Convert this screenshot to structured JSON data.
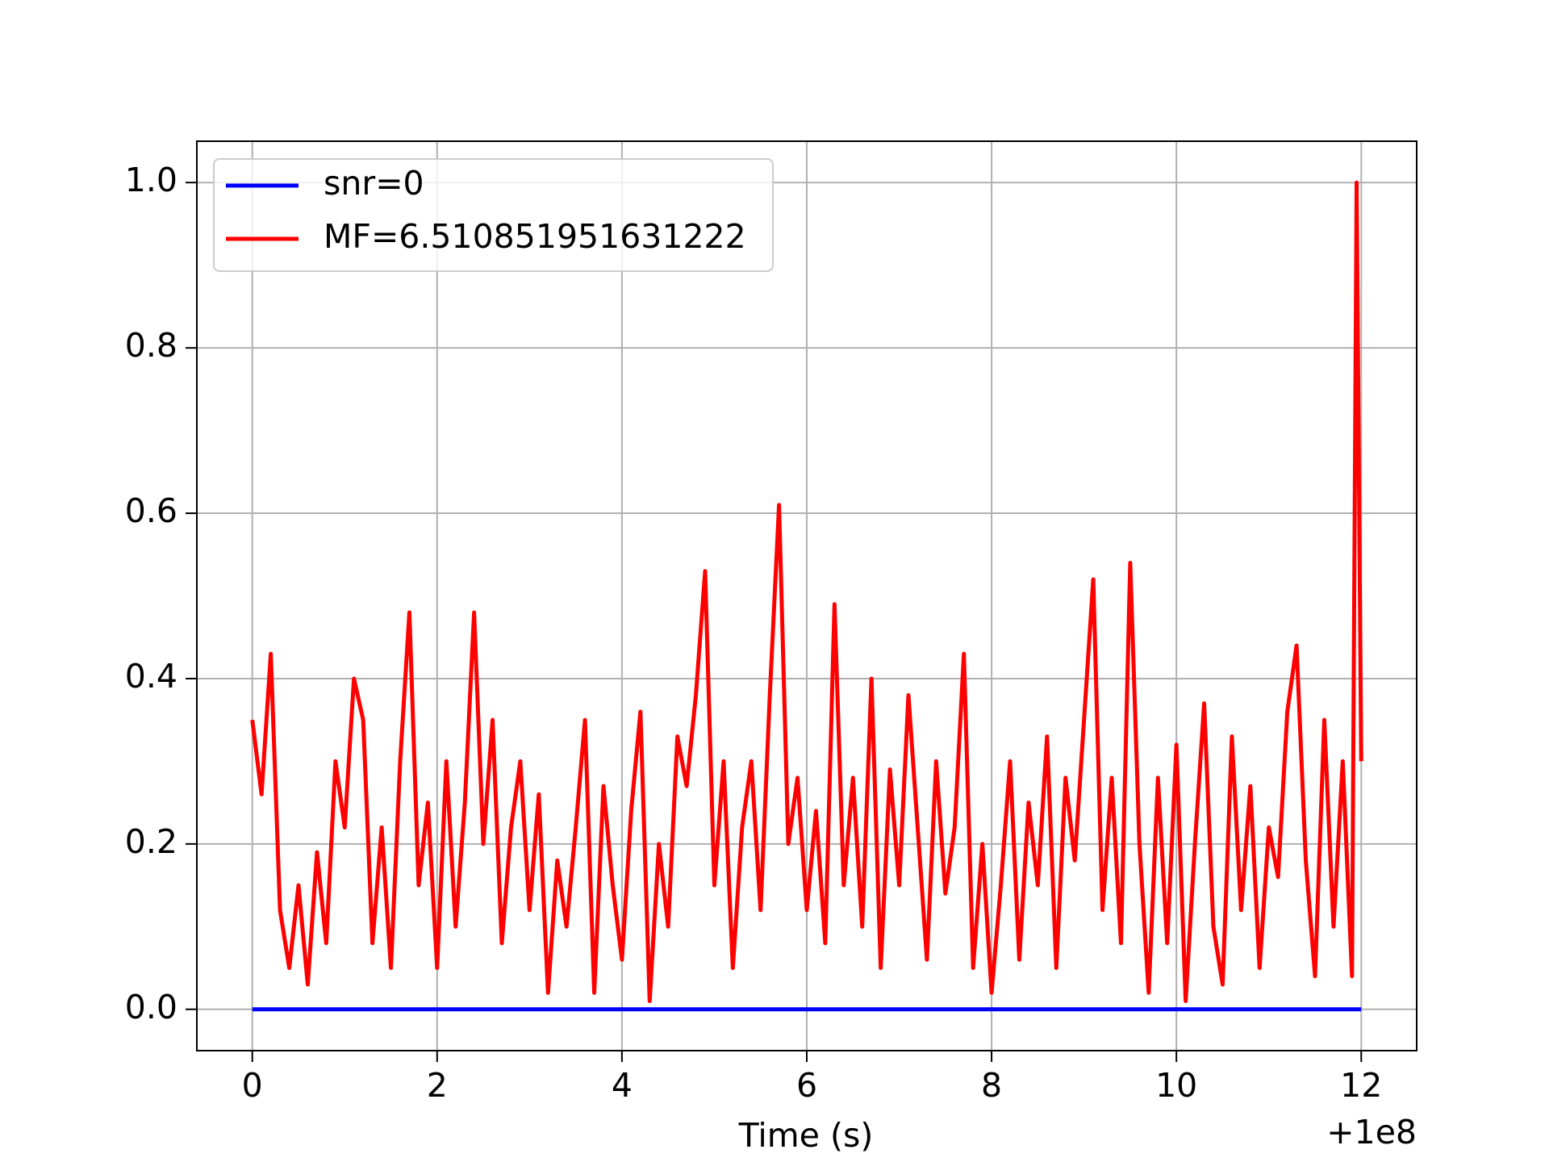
{
  "chart_data": {
    "type": "line",
    "x_label": "Time (s)",
    "x_offset_label": "+1e8",
    "x": [
      0,
      0.1,
      0.2,
      0.3,
      0.4,
      0.5,
      0.6,
      0.7,
      0.8,
      0.9,
      1,
      1.1,
      1.2,
      1.3,
      1.4,
      1.5,
      1.6,
      1.7,
      1.8,
      1.9,
      2,
      2.1,
      2.2,
      2.3,
      2.4,
      2.5,
      2.6,
      2.7,
      2.8,
      2.9,
      3,
      3.1,
      3.2,
      3.3,
      3.4,
      3.5,
      3.6,
      3.7,
      3.8,
      3.9,
      4,
      4.1,
      4.2,
      4.3,
      4.4,
      4.5,
      4.6,
      4.7,
      4.8,
      4.9,
      5,
      5.1,
      5.2,
      5.3,
      5.4,
      5.5,
      5.6,
      5.7,
      5.8,
      5.9,
      6,
      6.1,
      6.2,
      6.3,
      6.4,
      6.5,
      6.6,
      6.7,
      6.8,
      6.9,
      7,
      7.1,
      7.2,
      7.3,
      7.4,
      7.5,
      7.6,
      7.7,
      7.8,
      7.9,
      8,
      8.1,
      8.2,
      8.3,
      8.4,
      8.5,
      8.6,
      8.7,
      8.8,
      8.9,
      9,
      9.1,
      9.2,
      9.3,
      9.4,
      9.5,
      9.6,
      9.7,
      9.8,
      9.9,
      10,
      10.1,
      10.2,
      10.3,
      10.4,
      10.5,
      10.6,
      10.7,
      10.8,
      10.9,
      11,
      11.1,
      11.2,
      11.3,
      11.4,
      11.5,
      11.6,
      11.7,
      11.8,
      11.9,
      11.95,
      12
    ],
    "series": [
      {
        "name": "snr=0",
        "color": "#0000ff",
        "values": [
          0,
          0,
          0,
          0,
          0,
          0,
          0,
          0,
          0,
          0,
          0,
          0,
          0,
          0,
          0,
          0,
          0,
          0,
          0,
          0,
          0,
          0,
          0,
          0,
          0,
          0,
          0,
          0,
          0,
          0,
          0,
          0,
          0,
          0,
          0,
          0,
          0,
          0,
          0,
          0,
          0,
          0,
          0,
          0,
          0,
          0,
          0,
          0,
          0,
          0,
          0,
          0,
          0,
          0,
          0,
          0,
          0,
          0,
          0,
          0,
          0,
          0,
          0,
          0,
          0,
          0,
          0,
          0,
          0,
          0,
          0,
          0,
          0,
          0,
          0,
          0,
          0,
          0,
          0,
          0,
          0,
          0,
          0,
          0,
          0,
          0,
          0,
          0,
          0,
          0,
          0,
          0,
          0,
          0,
          0,
          0,
          0,
          0,
          0,
          0,
          0,
          0,
          0,
          0,
          0,
          0,
          0,
          0,
          0,
          0,
          0,
          0,
          0,
          0,
          0,
          0,
          0,
          0,
          0,
          0,
          0,
          0
        ]
      },
      {
        "name": "MF=6.510851951631222",
        "color": "#ff0000",
        "values": [
          0.35,
          0.26,
          0.43,
          0.12,
          0.05,
          0.15,
          0.03,
          0.19,
          0.08,
          0.3,
          0.22,
          0.4,
          0.35,
          0.08,
          0.22,
          0.05,
          0.3,
          0.48,
          0.15,
          0.25,
          0.05,
          0.3,
          0.1,
          0.25,
          0.48,
          0.2,
          0.35,
          0.08,
          0.22,
          0.3,
          0.12,
          0.26,
          0.02,
          0.18,
          0.1,
          0.22,
          0.35,
          0.02,
          0.27,
          0.15,
          0.06,
          0.24,
          0.36,
          0.01,
          0.2,
          0.1,
          0.33,
          0.27,
          0.38,
          0.53,
          0.15,
          0.3,
          0.05,
          0.22,
          0.3,
          0.12,
          0.38,
          0.61,
          0.2,
          0.28,
          0.12,
          0.24,
          0.08,
          0.49,
          0.15,
          0.28,
          0.1,
          0.4,
          0.05,
          0.29,
          0.15,
          0.38,
          0.22,
          0.06,
          0.3,
          0.14,
          0.22,
          0.43,
          0.05,
          0.2,
          0.02,
          0.15,
          0.3,
          0.06,
          0.25,
          0.15,
          0.33,
          0.05,
          0.28,
          0.18,
          0.35,
          0.52,
          0.12,
          0.28,
          0.08,
          0.54,
          0.2,
          0.02,
          0.28,
          0.08,
          0.32,
          0.01,
          0.2,
          0.37,
          0.1,
          0.03,
          0.33,
          0.12,
          0.27,
          0.05,
          0.22,
          0.16,
          0.36,
          0.44,
          0.18,
          0.04,
          0.35,
          0.1,
          0.3,
          0.04,
          1.0,
          0.3
        ]
      }
    ],
    "xlim": [
      -0.6,
      12.6
    ],
    "xticks": [
      0,
      2,
      4,
      6,
      8,
      10,
      12
    ],
    "ylim": [
      -0.05,
      1.05
    ],
    "yticks": [
      {
        "value": 0,
        "label": "0.0"
      },
      {
        "value": 0.2,
        "label": "0.2"
      },
      {
        "value": 0.4,
        "label": "0.4"
      },
      {
        "value": 0.6,
        "label": "0.6"
      },
      {
        "value": 0.8,
        "label": "0.8"
      },
      {
        "value": 1.0,
        "label": "1.0"
      }
    ],
    "grid": true,
    "legend": "upper left"
  }
}
